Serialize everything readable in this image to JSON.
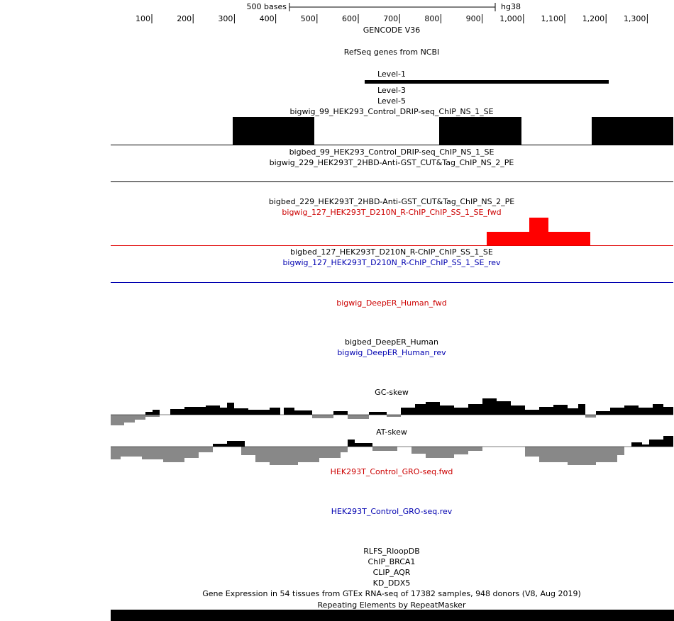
{
  "ruler": {
    "scale_label": "500 bases",
    "assembly": "hg38",
    "ticks": [
      "100",
      "200",
      "300",
      "400",
      "500",
      "600",
      "700",
      "800",
      "900",
      "1,000",
      "1,100",
      "1,200",
      "1,300"
    ]
  },
  "tracks": [
    {
      "text": "GENCODE V36",
      "color": "#000000"
    },
    {
      "text": "RefSeq genes from NCBI",
      "color": "#000000"
    },
    {
      "text": "Level-1",
      "color": "#000000"
    },
    {
      "text": "Level-3",
      "color": "#000000"
    },
    {
      "text": "Level-5",
      "color": "#000000"
    },
    {
      "text": "bigwig_99_HEK293_Control_DRIP-seq_ChIP_NS_1_SE",
      "color": "#000000"
    },
    {
      "text": "bigbed_99_HEK293_Control_DRIP-seq_ChIP_NS_1_SE",
      "color": "#000000"
    },
    {
      "text": "bigwig_229_HEK293T_2HBD-Anti-GST_CUT&Tag_ChIP_NS_2_PE",
      "color": "#000000"
    },
    {
      "text": "bigbed_229_HEK293T_2HBD-Anti-GST_CUT&Tag_ChIP_NS_2_PE",
      "color": "#000000"
    },
    {
      "text": "bigwig_127_HEK293T_D210N_R-ChIP_ChIP_SS_1_SE_fwd",
      "color": "#cc0000"
    },
    {
      "text": "bigbed_127_HEK293T_D210N_R-ChIP_ChIP_SS_1_SE",
      "color": "#000000"
    },
    {
      "text": "bigwig_127_HEK293T_D210N_R-ChIP_ChIP_SS_1_SE_rev",
      "color": "#0000b0"
    },
    {
      "text": "bigwig_DeepER_Human_fwd",
      "color": "#cc0000"
    },
    {
      "text": "bigbed_DeepER_Human",
      "color": "#000000"
    },
    {
      "text": "bigwig_DeepER_Human_rev",
      "color": "#0000b0"
    },
    {
      "text": "GC-skew",
      "color": "#000000"
    },
    {
      "text": "AT-skew",
      "color": "#000000"
    },
    {
      "text": "HEK293T_Control_GRO-seq.fwd",
      "color": "#cc0000"
    },
    {
      "text": "HEK293T_Control_GRO-seq.rev",
      "color": "#0000b0"
    },
    {
      "text": "RLFS_RloopDB",
      "color": "#000000"
    },
    {
      "text": "ChIP_BRCA1",
      "color": "#000000"
    },
    {
      "text": "CLIP_AQR",
      "color": "#000000"
    },
    {
      "text": "KD_DDX5",
      "color": "#000000"
    },
    {
      "text": "Gene Expression in 54 tissues from GTEx RNA-seq of 17382 samples, 948 donors (V8, Aug 2019)",
      "color": "#000000"
    },
    {
      "text": "Repeating Elements by RepeatMasker",
      "color": "#000000"
    }
  ]
}
